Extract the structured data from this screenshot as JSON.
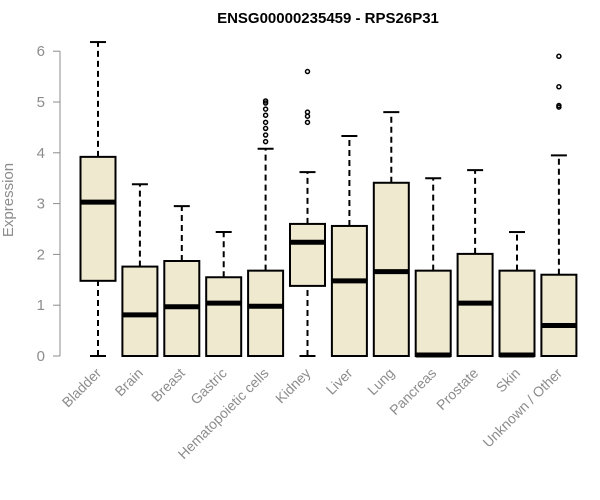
{
  "chart_data": {
    "type": "boxplot",
    "title": "ENSG00000235459 - RPS26P31",
    "xlabel": "",
    "ylabel": "Expression",
    "ylim": [
      0,
      6
    ],
    "yticks": [
      "0",
      "1",
      "2",
      "3",
      "4",
      "5",
      "6"
    ],
    "box_fill": "#efe9d0",
    "box_stroke": "#000000",
    "categories": [
      "Bladder",
      "Brain",
      "Breast",
      "Gastric",
      "Hematopoietic cells",
      "Kidney",
      "Liver",
      "Lung",
      "Pancreas",
      "Prostate",
      "Skin",
      "Unknown / Other"
    ],
    "series": [
      {
        "name": "Bladder",
        "min": 0,
        "q1": 1.48,
        "median": 3.03,
        "q3": 3.92,
        "max": 6.18,
        "outliers": []
      },
      {
        "name": "Brain",
        "min": 0,
        "q1": 0,
        "median": 0.81,
        "q3": 1.76,
        "max": 3.38,
        "outliers": []
      },
      {
        "name": "Breast",
        "min": 0,
        "q1": 0,
        "median": 0.97,
        "q3": 1.87,
        "max": 2.95,
        "outliers": []
      },
      {
        "name": "Gastric",
        "min": 0,
        "q1": 0,
        "median": 1.04,
        "q3": 1.55,
        "max": 2.44,
        "outliers": []
      },
      {
        "name": "Hematopoietic cells",
        "min": 0,
        "q1": 0,
        "median": 0.98,
        "q3": 1.68,
        "max": 4.08,
        "outliers": [
          4.22,
          4.35,
          4.48,
          4.6,
          4.74,
          4.86,
          4.98,
          5.02
        ]
      },
      {
        "name": "Kidney",
        "min": 0,
        "q1": 1.38,
        "median": 2.24,
        "q3": 2.6,
        "max": 3.62,
        "outliers": [
          4.6,
          4.72,
          4.8,
          5.6
        ]
      },
      {
        "name": "Liver",
        "min": 0,
        "q1": 0,
        "median": 1.48,
        "q3": 2.56,
        "max": 4.33,
        "outliers": []
      },
      {
        "name": "Lung",
        "min": 0,
        "q1": 0,
        "median": 1.66,
        "q3": 3.41,
        "max": 4.8,
        "outliers": []
      },
      {
        "name": "Pancreas",
        "min": 0,
        "q1": 0,
        "median": 0.02,
        "q3": 1.68,
        "max": 3.5,
        "outliers": []
      },
      {
        "name": "Prostate",
        "min": 0,
        "q1": 0,
        "median": 1.04,
        "q3": 2.01,
        "max": 3.66,
        "outliers": []
      },
      {
        "name": "Skin",
        "min": 0,
        "q1": 0,
        "median": 0.02,
        "q3": 1.68,
        "max": 2.44,
        "outliers": []
      },
      {
        "name": "Unknown / Other",
        "min": 0,
        "q1": 0,
        "median": 0.6,
        "q3": 1.6,
        "max": 3.95,
        "outliers": [
          4.9,
          4.93,
          5.3,
          5.9
        ]
      }
    ]
  }
}
